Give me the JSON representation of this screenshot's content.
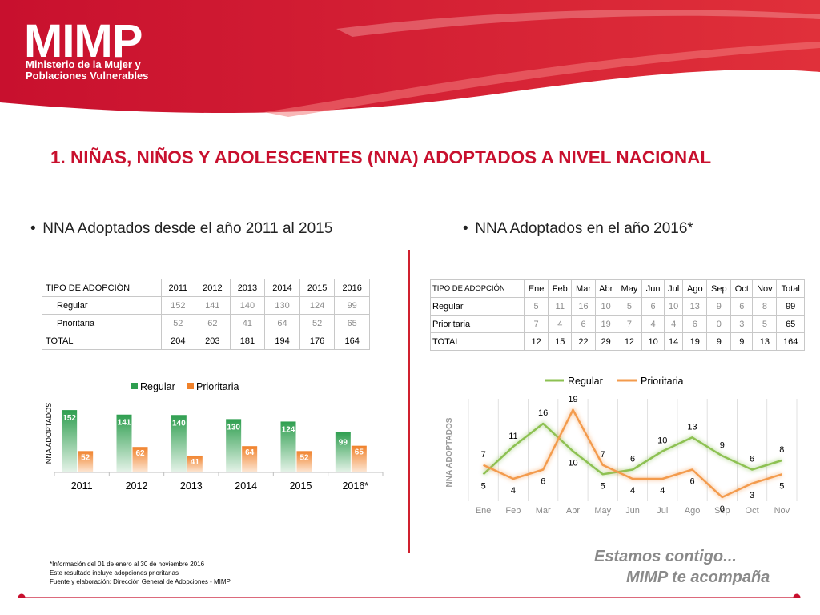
{
  "header": {
    "logo_text": "MIMP",
    "logo_sub1": "Ministerio de la Mujer y",
    "logo_sub2": "Poblaciones Vulnerables",
    "brand_color": "#d9232e"
  },
  "page_title": "1. NIÑAS, NIÑOS Y ADOLESCENTES (NNA) ADOPTADOS A NIVEL NACIONAL",
  "left_section": {
    "bullet": "NNA Adoptados desde el año 2011 al 2015",
    "table": {
      "headers": [
        "TIPO DE ADOPCIÓN",
        "2011",
        "2012",
        "2013",
        "2014",
        "2015",
        "2016"
      ],
      "rows": [
        {
          "label": "Regular",
          "values": [
            "152",
            "141",
            "140",
            "130",
            "124",
            "99"
          ]
        },
        {
          "label": "Prioritaria",
          "values": [
            "52",
            "62",
            "41",
            "64",
            "52",
            "65"
          ]
        },
        {
          "label": "TOTAL",
          "values": [
            "204",
            "203",
            "181",
            "194",
            "176",
            "164"
          ]
        }
      ]
    }
  },
  "right_section": {
    "bullet": "NNA Adoptados en el año 2016*",
    "table": {
      "headers": [
        "TIPO DE ADOPCIÓN",
        "Ene",
        "Feb",
        "Mar",
        "Abr",
        "May",
        "Jun",
        "Jul",
        "Ago",
        "Sep",
        "Oct",
        "Nov",
        "Total"
      ],
      "rows": [
        {
          "label": "Regular",
          "values": [
            "5",
            "11",
            "16",
            "10",
            "5",
            "6",
            "10",
            "13",
            "9",
            "6",
            "8",
            "99"
          ]
        },
        {
          "label": "Prioritaria",
          "values": [
            "7",
            "4",
            "6",
            "19",
            "7",
            "4",
            "4",
            "6",
            "0",
            "3",
            "5",
            "65"
          ]
        },
        {
          "label": "TOTAL",
          "values": [
            "12",
            "15",
            "22",
            "29",
            "12",
            "10",
            "14",
            "19",
            "9",
            "9",
            "13",
            "164"
          ]
        }
      ]
    }
  },
  "chart_data": [
    {
      "type": "bar",
      "title": "",
      "xlabel": "",
      "ylabel": "NNA ADOPTADOS",
      "categories": [
        "2011",
        "2012",
        "2013",
        "2014",
        "2015",
        "2016*"
      ],
      "series": [
        {
          "name": "Regular",
          "values": [
            152,
            141,
            140,
            130,
            124,
            99
          ],
          "color": "#2e9e4f"
        },
        {
          "name": "Prioritaria",
          "values": [
            52,
            62,
            41,
            64,
            52,
            65
          ],
          "color": "#f0812a"
        }
      ],
      "ylim": [
        0,
        160
      ],
      "legend": "top"
    },
    {
      "type": "line",
      "title": "",
      "xlabel": "",
      "ylabel": "NNA ADOPTADOS",
      "categories": [
        "Ene",
        "Feb",
        "Mar",
        "Abr",
        "May",
        "Jun",
        "Jul",
        "Ago",
        "Sep",
        "Oct",
        "Nov"
      ],
      "series": [
        {
          "name": "Regular",
          "values": [
            5,
            11,
            16,
            10,
            5,
            6,
            10,
            13,
            9,
            6,
            8
          ],
          "color": "#8dc152"
        },
        {
          "name": "Prioritaria",
          "values": [
            7,
            4,
            6,
            19,
            7,
            4,
            4,
            6,
            0,
            3,
            5
          ],
          "color": "#f39b4d"
        }
      ],
      "ylim": [
        0,
        20
      ],
      "legend": "top"
    }
  ],
  "footer": {
    "notes": [
      "*Información del 01 de enero al 30 de noviembre 2016",
      "Este resultado incluye adopciones prioritarias",
      "Fuente y elaboración: Dirección General de Adopciones - MIMP"
    ],
    "slogan_line1": "Estamos contigo...",
    "slogan_line2": "MIMP te acompaña"
  }
}
